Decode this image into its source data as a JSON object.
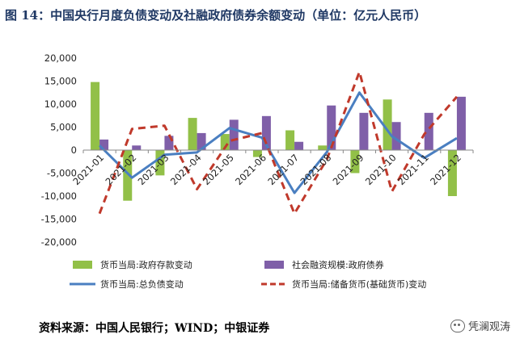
{
  "title": "图 14：中国央行月度负债变动及社融政府债券余额变动（单位：亿元人民币）",
  "source": "资料来源：中国人民银行；WIND；中银证券",
  "watermark": "凭澜观涛",
  "chart_data": {
    "type": "bar",
    "title": "图 14：中国央行月度负债变动及社融政府债券余额变动（单位：亿元人民币）",
    "categories": [
      "2021-01",
      "2021-02",
      "2021-03",
      "2021-04",
      "2021-05",
      "2021-06",
      "2021-07",
      "2021-08",
      "2021-09",
      "2021-10",
      "2021-11",
      "2021-12"
    ],
    "ylim": [
      -20000,
      20000
    ],
    "yticks": [
      -20000,
      -15000,
      -10000,
      -5000,
      0,
      5000,
      10000,
      15000,
      20000
    ],
    "ytick_labels": [
      "-20,000",
      "-15,000",
      "-10,000",
      "-5,000",
      "0",
      "5,000",
      "10,000",
      "15,000",
      "20,000"
    ],
    "grid": false,
    "legend_position": "bottom",
    "series": [
      {
        "name": "货币当局:政府存款变动",
        "type": "bar",
        "color": "#92c048",
        "values": [
          14800,
          -11000,
          -5500,
          7000,
          3500,
          -1500,
          4300,
          1000,
          -5000,
          11000,
          0,
          -10000
        ]
      },
      {
        "name": "社会融资规模:政府债券",
        "type": "bar",
        "color": "#7f5fa8",
        "values": [
          2300,
          1000,
          3100,
          3700,
          6600,
          7400,
          1800,
          9700,
          8100,
          6100,
          8100,
          11600
        ]
      },
      {
        "name": "货币当局:总负债变动",
        "type": "line",
        "color": "#4a7fc1",
        "dash": false,
        "values": [
          1000,
          -6000,
          -1000,
          -500,
          4800,
          2700,
          -9300,
          -400,
          12500,
          3000,
          -1700,
          2600
        ]
      },
      {
        "name": "货币当局:储备货币(基础货币)变动",
        "type": "line",
        "color": "#c0392b",
        "dash": true,
        "values": [
          -13800,
          4600,
          5300,
          -8500,
          2000,
          3700,
          -13800,
          -2000,
          17000,
          -9000,
          3500,
          11600
        ]
      }
    ]
  }
}
